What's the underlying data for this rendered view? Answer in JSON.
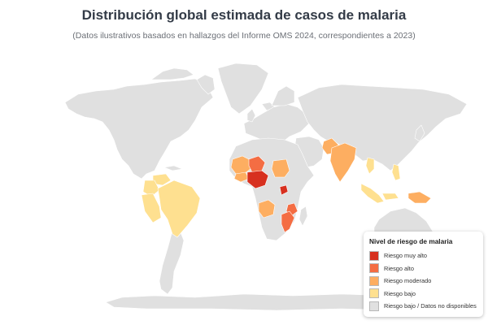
{
  "title": "Distribución global estimada de casos de malaria",
  "subtitle": "(Datos ilustrativos basados en hallazgos del Informe OMS 2024, correspondientes a 2023)",
  "colors": {
    "very_high": "#d7301f",
    "high": "#f46d43",
    "moderate": "#fdae61",
    "low": "#fee090",
    "no_data": "#e0e0e0"
  },
  "legend": {
    "title": "Nivel de riesgo de malaria",
    "items": [
      {
        "label": "Riesgo muy alto",
        "color": "#d7301f"
      },
      {
        "label": "Riesgo alto",
        "color": "#f46d43"
      },
      {
        "label": "Riesgo moderado",
        "color": "#fdae61"
      },
      {
        "label": "Riesgo bajo",
        "color": "#fee090"
      },
      {
        "label": "Riesgo bajo / Datos no disponibles",
        "color": "#e0e0e0"
      }
    ]
  },
  "regions": [
    {
      "id": "nigeria",
      "risk": "very_high"
    },
    {
      "id": "drc",
      "risk": "very_high"
    },
    {
      "id": "niger",
      "risk": "high"
    },
    {
      "id": "tanzania",
      "risk": "high"
    },
    {
      "id": "mozambique",
      "risk": "high"
    },
    {
      "id": "mali",
      "risk": "moderate"
    },
    {
      "id": "burkina-faso",
      "risk": "moderate"
    },
    {
      "id": "sudan",
      "risk": "moderate"
    },
    {
      "id": "angola",
      "risk": "moderate"
    },
    {
      "id": "pakistan",
      "risk": "moderate"
    },
    {
      "id": "india",
      "risk": "moderate"
    },
    {
      "id": "papua-new-guinea",
      "risk": "moderate"
    },
    {
      "id": "venezuela",
      "risk": "low"
    },
    {
      "id": "colombia",
      "risk": "low"
    },
    {
      "id": "peru",
      "risk": "low"
    },
    {
      "id": "brazil",
      "risk": "low"
    },
    {
      "id": "philippines",
      "risk": "low"
    },
    {
      "id": "indonesia",
      "risk": "low"
    },
    {
      "id": "myanmar",
      "risk": "low"
    }
  ]
}
